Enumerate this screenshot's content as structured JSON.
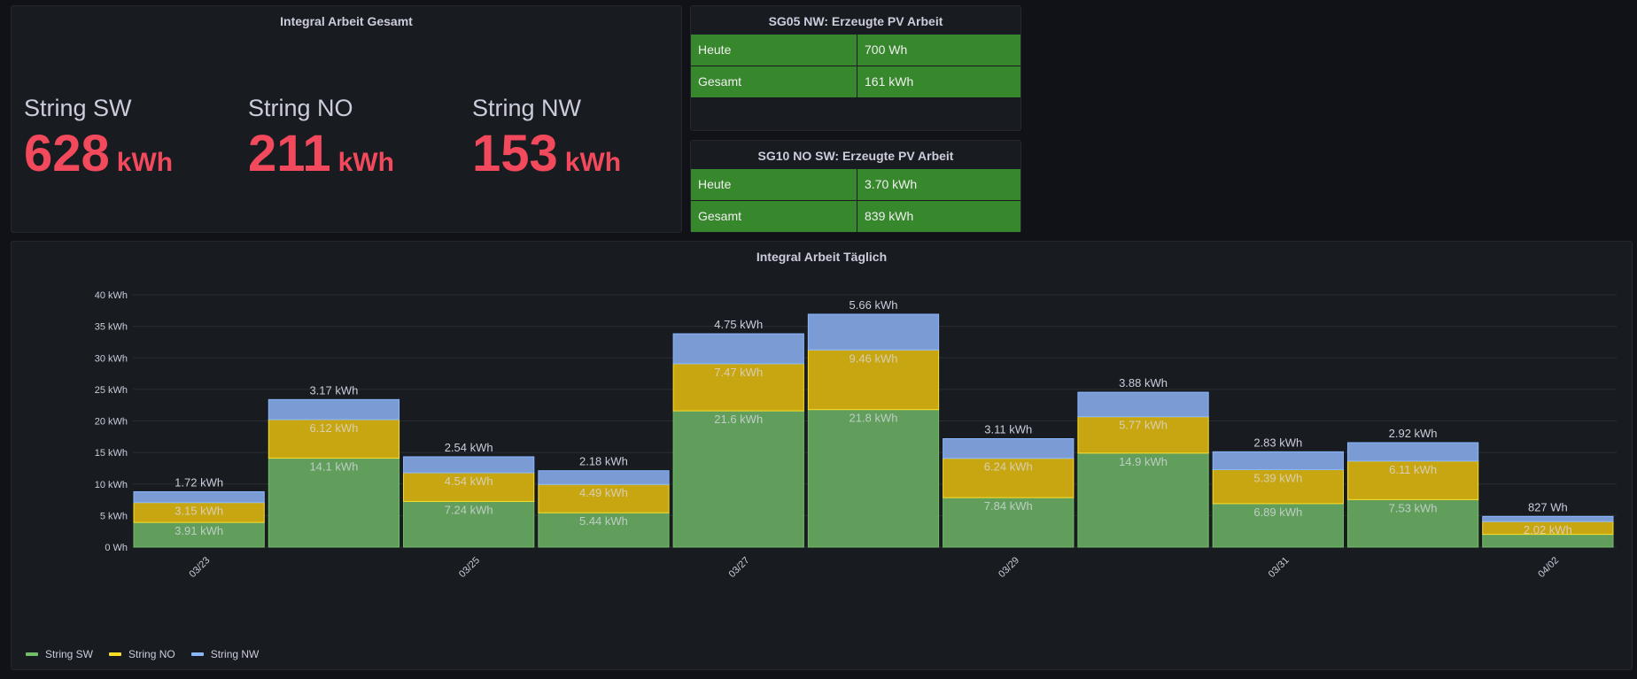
{
  "gesamt": {
    "title": "Integral Arbeit Gesamt",
    "stats": [
      {
        "label": "String SW",
        "value": "628",
        "unit": "kWh"
      },
      {
        "label": "String NO",
        "value": "211",
        "unit": "kWh"
      },
      {
        "label": "String NW",
        "value": "153",
        "unit": "kWh"
      }
    ],
    "value_color": "#f2495c"
  },
  "tables": [
    {
      "title": "SG05 NW: Erzeugte PV Arbeit",
      "rows": [
        [
          "Heute",
          "700 Wh"
        ],
        [
          "Gesamt",
          "161 kWh"
        ]
      ]
    },
    {
      "title": "SG10 NO SW: Erzeugte PV Arbeit",
      "rows": [
        [
          "Heute",
          "3.70 kWh"
        ],
        [
          "Gesamt",
          "839 kWh"
        ]
      ]
    }
  ],
  "chart_data": {
    "type": "bar",
    "stacked": true,
    "title": "Integral Arbeit Täglich",
    "categories": [
      "03/23",
      "03/24",
      "03/25",
      "03/26",
      "03/27",
      "03/28",
      "03/29",
      "03/30",
      "03/31",
      "04/01",
      "04/02"
    ],
    "x_tick_labels": [
      "03/23",
      "03/25",
      "03/27",
      "03/29",
      "03/31",
      "04/02"
    ],
    "unit": "kWh",
    "ylim": [
      0,
      40
    ],
    "y_ticks": [
      "0 Wh",
      "5 kWh",
      "10 kWh",
      "15 kWh",
      "20 kWh",
      "25 kWh",
      "30 kWh",
      "35 kWh",
      "40 kWh"
    ],
    "grid": true,
    "legend_placement": "bottom-left",
    "series": [
      {
        "name": "String SW",
        "color": "#73bf69",
        "values": [
          3.91,
          14.1,
          7.24,
          5.44,
          21.6,
          21.8,
          7.84,
          14.9,
          6.89,
          7.53,
          2.02
        ],
        "labels": [
          "3.91 kWh",
          "14.1 kWh",
          "7.24 kWh",
          "5.44 kWh",
          "21.6 kWh",
          "21.8 kWh",
          "7.84 kWh",
          "14.9 kWh",
          "6.89 kWh",
          "7.53 kWh",
          ""
        ]
      },
      {
        "name": "String NO",
        "color": "#fade2a",
        "values": [
          3.15,
          6.12,
          4.54,
          4.49,
          7.47,
          9.46,
          6.24,
          5.77,
          5.39,
          6.11,
          2.02
        ],
        "labels": [
          "3.15 kWh",
          "6.12 kWh",
          "4.54 kWh",
          "4.49 kWh",
          "7.47 kWh",
          "9.46 kWh",
          "6.24 kWh",
          "5.77 kWh",
          "5.39 kWh",
          "6.11 kWh",
          "2.02 kWh"
        ]
      },
      {
        "name": "String NW",
        "color": "#8ab8ff",
        "values": [
          1.72,
          3.17,
          2.54,
          2.18,
          4.75,
          5.66,
          3.11,
          3.88,
          2.83,
          2.92,
          0.827
        ],
        "labels": [
          "1.72 kWh",
          "3.17 kWh",
          "2.54 kWh",
          "2.18 kWh",
          "4.75 kWh",
          "5.66 kWh",
          "3.11 kWh",
          "3.88 kWh",
          "2.83 kWh",
          "2.92 kWh",
          "827 Wh"
        ]
      }
    ]
  }
}
